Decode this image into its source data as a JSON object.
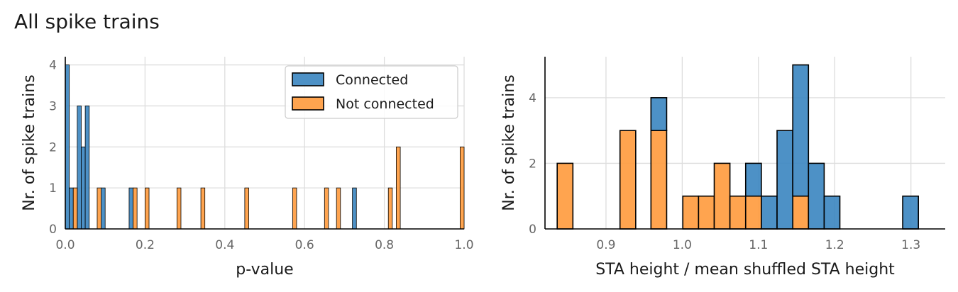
{
  "figure": {
    "title": "All spike trains"
  },
  "colors": {
    "connected": "#3a85c0",
    "not_connected": "#ff9a3c",
    "grid": "#dddddd",
    "edge": "#000000"
  },
  "chart_data": [
    {
      "type": "bar",
      "subtype": "histogram",
      "xlabel": "p-value",
      "ylabel": "Nr. of spike trains",
      "xlim": [
        0.0,
        1.0
      ],
      "ylim": [
        0,
        4.2
      ],
      "xticks": [
        "0.0",
        "0.2",
        "0.4",
        "0.6",
        "0.8",
        "1.0"
      ],
      "yticks": [
        "0",
        "1",
        "2",
        "3",
        "4"
      ],
      "grid": true,
      "legend": {
        "placement": "top-right",
        "entries": [
          "Connected",
          "Not connected"
        ]
      },
      "bin_width": 0.01,
      "series": [
        {
          "name": "Connected",
          "bins": [
            {
              "x": 0.0,
              "value": 4
            },
            {
              "x": 0.01,
              "value": 1
            },
            {
              "x": 0.03,
              "value": 3
            },
            {
              "x": 0.04,
              "value": 2
            },
            {
              "x": 0.05,
              "value": 3
            },
            {
              "x": 0.09,
              "value": 1
            },
            {
              "x": 0.16,
              "value": 1
            },
            {
              "x": 0.72,
              "value": 1
            }
          ]
        },
        {
          "name": "Not connected",
          "bins": [
            {
              "x": 0.02,
              "value": 1
            },
            {
              "x": 0.08,
              "value": 1
            },
            {
              "x": 0.17,
              "value": 1
            },
            {
              "x": 0.2,
              "value": 1
            },
            {
              "x": 0.28,
              "value": 1
            },
            {
              "x": 0.34,
              "value": 1
            },
            {
              "x": 0.45,
              "value": 1
            },
            {
              "x": 0.57,
              "value": 1
            },
            {
              "x": 0.65,
              "value": 1
            },
            {
              "x": 0.68,
              "value": 1
            },
            {
              "x": 0.81,
              "value": 1
            },
            {
              "x": 0.83,
              "value": 2
            },
            {
              "x": 0.99,
              "value": 2
            }
          ]
        }
      ]
    },
    {
      "type": "bar",
      "subtype": "stacked histogram",
      "xlabel": "STA height / mean shuffled STA height",
      "ylabel": "Nr. of spike trains",
      "xlim": [
        0.82,
        1.345
      ],
      "ylim": [
        0,
        5.25
      ],
      "xticks": [
        "0.9",
        "1.0",
        "1.1",
        "1.2",
        "1.3"
      ],
      "yticks": [
        "0",
        "2",
        "4"
      ],
      "grid": true,
      "bin_width": 0.0206,
      "series": [
        {
          "name": "Not connected",
          "bins": [
            {
              "x": 0.836,
              "value": 2
            },
            {
              "x": 0.9184,
              "value": 3
            },
            {
              "x": 0.959,
              "value": 3
            },
            {
              "x": 1.0008,
              "value": 1
            },
            {
              "x": 1.0214,
              "value": 1
            },
            {
              "x": 1.042,
              "value": 2
            },
            {
              "x": 1.0626,
              "value": 1
            },
            {
              "x": 1.0832,
              "value": 1
            },
            {
              "x": 1.145,
              "value": 1
            }
          ]
        },
        {
          "name": "Connected",
          "bins": [
            {
              "x": 0.959,
              "value": 1
            },
            {
              "x": 1.0832,
              "value": 1
            },
            {
              "x": 1.1038,
              "value": 1
            },
            {
              "x": 1.1244,
              "value": 3
            },
            {
              "x": 1.145,
              "value": 4
            },
            {
              "x": 1.1656,
              "value": 2
            },
            {
              "x": 1.1862,
              "value": 1
            },
            {
              "x": 1.2892,
              "value": 1
            }
          ]
        }
      ]
    }
  ]
}
